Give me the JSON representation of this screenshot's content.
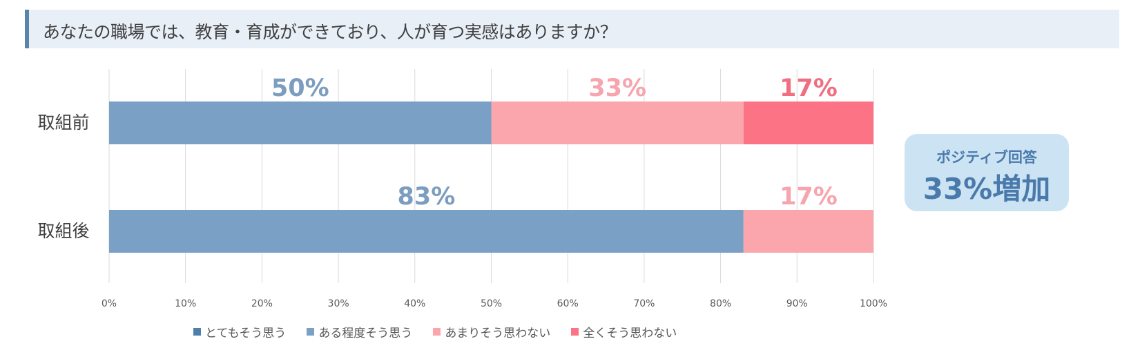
{
  "title": "あなたの職場では、教育・育成ができており、人が育つ実感はありますか？",
  "chart_data": {
    "type": "bar",
    "orientation": "horizontal",
    "stacked": true,
    "percent": true,
    "categories": [
      "取組前",
      "取組後"
    ],
    "series": [
      {
        "name": "とてもそう思う",
        "values": [
          0,
          0
        ],
        "color": "#4e7fab"
      },
      {
        "name": "ある程度そう思う",
        "values": [
          50,
          83
        ],
        "color": "#7aa0c6",
        "label_color": "#7b9dbf"
      },
      {
        "name": "あまりそう思わない",
        "values": [
          33,
          17
        ],
        "color": "#fba5ad",
        "label_color": "#f6a4ad"
      },
      {
        "name": "全くそう思わない",
        "values": [
          17,
          0
        ],
        "color": "#fc7385",
        "label_color": "#ef6f81"
      }
    ],
    "data_labels": [
      {
        "category": "取組前",
        "series": "ある程度そう思う",
        "text": "50%"
      },
      {
        "category": "取組前",
        "series": "あまりそう思わない",
        "text": "33%"
      },
      {
        "category": "取組前",
        "series": "全くそう思わない",
        "text": "17%"
      },
      {
        "category": "取組後",
        "series": "ある程度そう思う",
        "text": "83%"
      },
      {
        "category": "取組後",
        "series": "あまりそう思わない",
        "text": "17%"
      }
    ],
    "x_ticks": [
      "0%",
      "10%",
      "20%",
      "30%",
      "40%",
      "50%",
      "60%",
      "70%",
      "80%",
      "90%",
      "100%"
    ],
    "xlim": [
      0,
      100
    ],
    "grid": true,
    "legend_position": "bottom"
  },
  "callout": {
    "line1": "ポジティブ回答",
    "line2": "33%増加"
  }
}
